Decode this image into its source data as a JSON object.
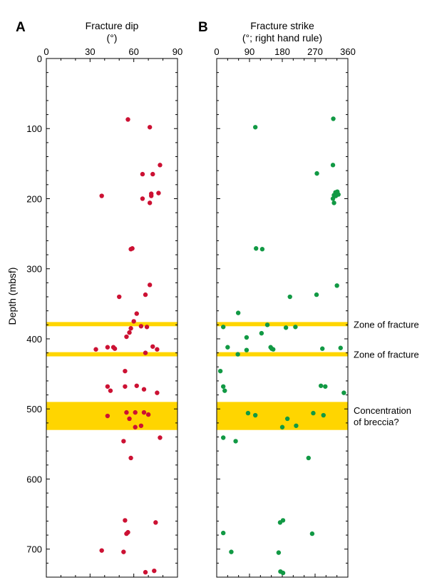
{
  "chart_data": [
    {
      "panel": "A",
      "type": "scatter",
      "title": "Fracture dip",
      "subtitle": "(°)",
      "ylabel": "Depth (mbsf)",
      "xlim": [
        0,
        90
      ],
      "ylim": [
        0,
        740
      ],
      "y_inverted": true,
      "x_ticks": [
        0,
        30,
        60,
        90
      ],
      "y_ticks": [
        0,
        100,
        200,
        300,
        400,
        500,
        600,
        700
      ],
      "marker_color": "#cc1133",
      "points": [
        {
          "x": 56,
          "y": 87
        },
        {
          "x": 71,
          "y": 98
        },
        {
          "x": 78,
          "y": 152
        },
        {
          "x": 66,
          "y": 165
        },
        {
          "x": 73,
          "y": 165
        },
        {
          "x": 38,
          "y": 196
        },
        {
          "x": 66,
          "y": 200
        },
        {
          "x": 72,
          "y": 193
        },
        {
          "x": 77,
          "y": 192
        },
        {
          "x": 72,
          "y": 196
        },
        {
          "x": 71,
          "y": 206
        },
        {
          "x": 59,
          "y": 271
        },
        {
          "x": 58,
          "y": 272
        },
        {
          "x": 71,
          "y": 323
        },
        {
          "x": 68,
          "y": 337
        },
        {
          "x": 50,
          "y": 340
        },
        {
          "x": 62,
          "y": 364
        },
        {
          "x": 60,
          "y": 375
        },
        {
          "x": 65,
          "y": 382
        },
        {
          "x": 69,
          "y": 383
        },
        {
          "x": 58,
          "y": 385
        },
        {
          "x": 57,
          "y": 391
        },
        {
          "x": 55,
          "y": 397
        },
        {
          "x": 42,
          "y": 412
        },
        {
          "x": 46,
          "y": 412
        },
        {
          "x": 47,
          "y": 414
        },
        {
          "x": 34,
          "y": 415
        },
        {
          "x": 73,
          "y": 411
        },
        {
          "x": 76,
          "y": 415
        },
        {
          "x": 68,
          "y": 420
        },
        {
          "x": 54,
          "y": 446
        },
        {
          "x": 62,
          "y": 467
        },
        {
          "x": 42,
          "y": 468
        },
        {
          "x": 54,
          "y": 468
        },
        {
          "x": 44,
          "y": 474
        },
        {
          "x": 67,
          "y": 472
        },
        {
          "x": 76,
          "y": 477
        },
        {
          "x": 55,
          "y": 505
        },
        {
          "x": 42,
          "y": 510
        },
        {
          "x": 61,
          "y": 505
        },
        {
          "x": 67,
          "y": 505
        },
        {
          "x": 70,
          "y": 508
        },
        {
          "x": 57,
          "y": 514
        },
        {
          "x": 61,
          "y": 526
        },
        {
          "x": 65,
          "y": 524
        },
        {
          "x": 78,
          "y": 541
        },
        {
          "x": 53,
          "y": 546
        },
        {
          "x": 58,
          "y": 570
        },
        {
          "x": 54,
          "y": 659
        },
        {
          "x": 75,
          "y": 662
        },
        {
          "x": 56,
          "y": 676
        },
        {
          "x": 55,
          "y": 678
        },
        {
          "x": 38,
          "y": 702
        },
        {
          "x": 53,
          "y": 704
        },
        {
          "x": 68,
          "y": 733
        },
        {
          "x": 74,
          "y": 731
        }
      ]
    },
    {
      "panel": "B",
      "type": "scatter",
      "title": "Fracture strike",
      "subtitle": "(°; right hand rule)",
      "xlim": [
        0,
        360
      ],
      "ylim": [
        0,
        740
      ],
      "y_inverted": true,
      "x_ticks": [
        0,
        90,
        180,
        270,
        360
      ],
      "marker_color": "#119944",
      "points": [
        {
          "x": 320,
          "y": 86
        },
        {
          "x": 106,
          "y": 98
        },
        {
          "x": 319,
          "y": 152
        },
        {
          "x": 275,
          "y": 164
        },
        {
          "x": 326,
          "y": 191
        },
        {
          "x": 331,
          "y": 190
        },
        {
          "x": 322,
          "y": 195
        },
        {
          "x": 334,
          "y": 194
        },
        {
          "x": 327,
          "y": 196
        },
        {
          "x": 332,
          "y": 193
        },
        {
          "x": 319,
          "y": 200
        },
        {
          "x": 322,
          "y": 206
        },
        {
          "x": 108,
          "y": 271
        },
        {
          "x": 125,
          "y": 272
        },
        {
          "x": 330,
          "y": 324
        },
        {
          "x": 274,
          "y": 337
        },
        {
          "x": 201,
          "y": 340
        },
        {
          "x": 59,
          "y": 363
        },
        {
          "x": 18,
          "y": 383
        },
        {
          "x": 139,
          "y": 380
        },
        {
          "x": 190,
          "y": 384
        },
        {
          "x": 216,
          "y": 383
        },
        {
          "x": 123,
          "y": 392
        },
        {
          "x": 82,
          "y": 398
        },
        {
          "x": 30,
          "y": 412
        },
        {
          "x": 148,
          "y": 412
        },
        {
          "x": 155,
          "y": 415
        },
        {
          "x": 151,
          "y": 414
        },
        {
          "x": 82,
          "y": 416
        },
        {
          "x": 58,
          "y": 422
        },
        {
          "x": 290,
          "y": 414
        },
        {
          "x": 340,
          "y": 413
        },
        {
          "x": 10,
          "y": 446
        },
        {
          "x": 18,
          "y": 468
        },
        {
          "x": 22,
          "y": 474
        },
        {
          "x": 286,
          "y": 467
        },
        {
          "x": 298,
          "y": 468
        },
        {
          "x": 349,
          "y": 477
        },
        {
          "x": 86,
          "y": 506
        },
        {
          "x": 106,
          "y": 509
        },
        {
          "x": 265,
          "y": 506
        },
        {
          "x": 293,
          "y": 509
        },
        {
          "x": 194,
          "y": 514
        },
        {
          "x": 218,
          "y": 524
        },
        {
          "x": 180,
          "y": 526
        },
        {
          "x": 18,
          "y": 541
        },
        {
          "x": 52,
          "y": 546
        },
        {
          "x": 252,
          "y": 570
        },
        {
          "x": 182,
          "y": 659
        },
        {
          "x": 174,
          "y": 662
        },
        {
          "x": 18,
          "y": 677
        },
        {
          "x": 262,
          "y": 678
        },
        {
          "x": 40,
          "y": 704
        },
        {
          "x": 170,
          "y": 705
        },
        {
          "x": 175,
          "y": 732
        },
        {
          "x": 182,
          "y": 734
        }
      ]
    }
  ],
  "zones": [
    {
      "top": 376,
      "bottom": 382,
      "label": "Zone of fracture"
    },
    {
      "top": 419,
      "bottom": 425,
      "label": "Zone of fracture"
    },
    {
      "top": 490,
      "bottom": 530,
      "label_lines": [
        "Concentration",
        "of breccia?"
      ]
    }
  ],
  "colors": {
    "zone_fill": "#ffd500",
    "frame": "#000000",
    "dip_marker": "#cc1133",
    "strike_marker": "#119944"
  }
}
